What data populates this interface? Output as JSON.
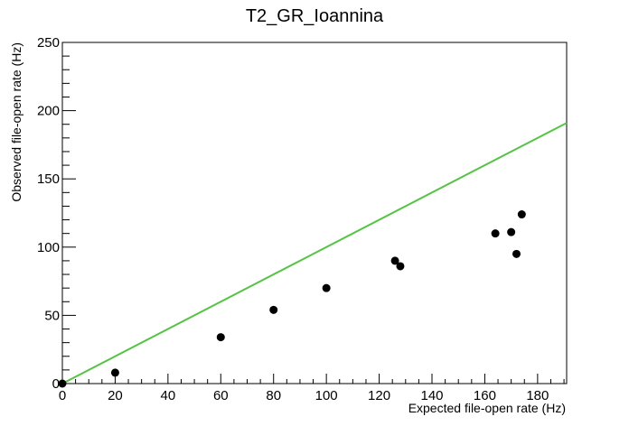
{
  "chart_data": {
    "type": "scatter",
    "title": "T2_GR_Ioannina",
    "xlabel": "Expected file-open rate (Hz)",
    "ylabel": "Observed file-open rate (Hz)",
    "xlim": [
      0,
      191
    ],
    "ylim": [
      0,
      250
    ],
    "x_ticks": [
      0,
      20,
      40,
      60,
      80,
      100,
      120,
      140,
      160,
      180
    ],
    "y_ticks": [
      0,
      50,
      100,
      150,
      200,
      250
    ],
    "grid": false,
    "legend": "none",
    "points": [
      {
        "x": 0,
        "y": 0
      },
      {
        "x": 20,
        "y": 8
      },
      {
        "x": 60,
        "y": 34
      },
      {
        "x": 80,
        "y": 54
      },
      {
        "x": 100,
        "y": 70
      },
      {
        "x": 126,
        "y": 90
      },
      {
        "x": 128,
        "y": 86
      },
      {
        "x": 164,
        "y": 110
      },
      {
        "x": 170,
        "y": 111
      },
      {
        "x": 172,
        "y": 95
      },
      {
        "x": 174,
        "y": 124
      }
    ],
    "reference_line": {
      "x": [
        0,
        191
      ],
      "y": [
        0,
        191
      ],
      "color": "#52c541"
    },
    "marker_color": "#000000"
  }
}
